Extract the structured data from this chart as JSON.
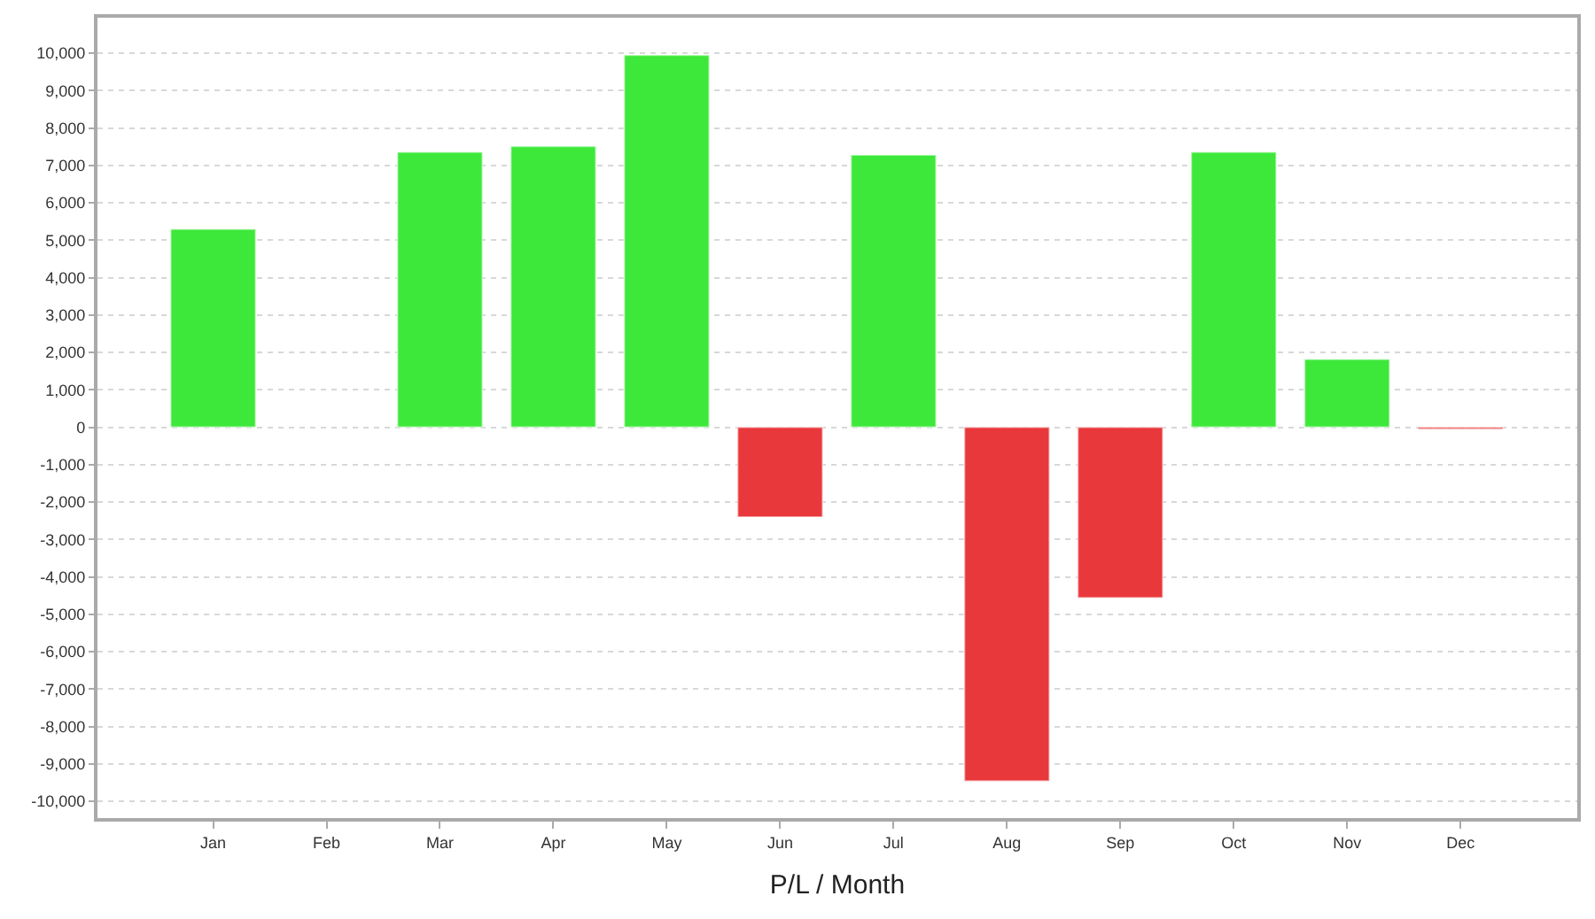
{
  "chart_data": {
    "type": "bar",
    "xlabel": "P/L / Month",
    "categories": [
      "Jan",
      "Feb",
      "Mar",
      "Apr",
      "May",
      "Jun",
      "Jul",
      "Aug",
      "Sep",
      "Oct",
      "Nov",
      "Dec"
    ],
    "values": [
      5300,
      null,
      7360,
      7510,
      9950,
      -2400,
      7280,
      -9460,
      -4560,
      7360,
      1820,
      -50
    ],
    "colors": [
      "#3de83a",
      null,
      "#3de83a",
      "#3de83a",
      "#3de83a",
      "#e8383b",
      "#3de83a",
      "#e8383b",
      "#e8383b",
      "#3de83a",
      "#3de83a",
      "#e8383b"
    ],
    "ylim": [
      -10450,
      10950
    ],
    "yticks": [
      {
        "value": -10000,
        "label": "-10,000"
      },
      {
        "value": -9000,
        "label": "-9,000"
      },
      {
        "value": -8000,
        "label": "-8,000"
      },
      {
        "value": -7000,
        "label": "-7,000"
      },
      {
        "value": -6000,
        "label": "-6,000"
      },
      {
        "value": -5000,
        "label": "-5,000"
      },
      {
        "value": -4000,
        "label": "-4,000"
      },
      {
        "value": -3000,
        "label": "-3,000"
      },
      {
        "value": -2000,
        "label": "-2,000"
      },
      {
        "value": -1000,
        "label": "-1,000"
      },
      0,
      {
        "value": 1000,
        "label": "1,000"
      },
      {
        "value": 2000,
        "label": "2,000"
      },
      {
        "value": 3000,
        "label": "3,000"
      },
      {
        "value": 4000,
        "label": "4,000"
      },
      {
        "value": 5000,
        "label": "5,000"
      },
      {
        "value": 6000,
        "label": "6,000"
      },
      {
        "value": 7000,
        "label": "7,000"
      },
      {
        "value": 8000,
        "label": "8,000"
      },
      {
        "value": 9000,
        "label": "9,000"
      },
      {
        "value": 10000,
        "label": "10,000"
      }
    ],
    "grid": "y"
  }
}
